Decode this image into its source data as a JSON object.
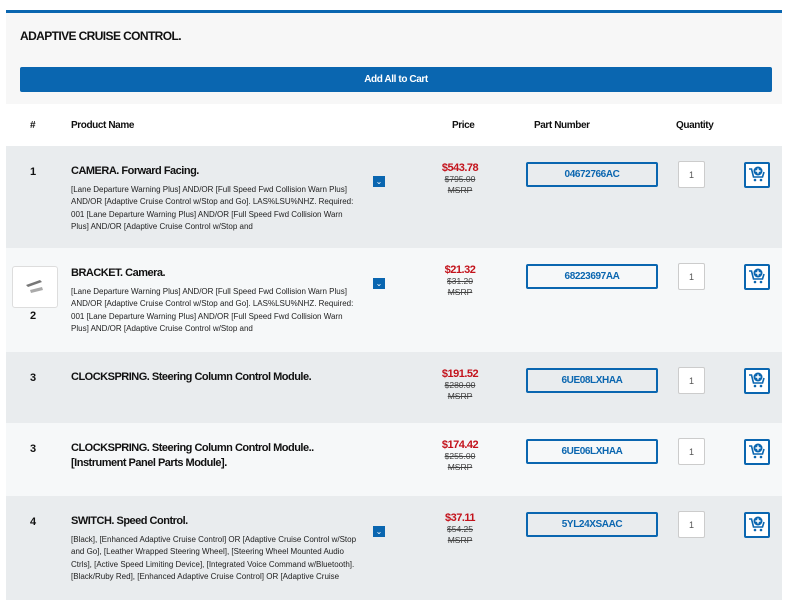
{
  "section": {
    "title": "ADAPTIVE CRUISE CONTROL.",
    "add_all_label": "Add All to Cart"
  },
  "columns": {
    "num": "#",
    "name": "Product Name",
    "price": "Price",
    "part": "Part Number",
    "qty": "Quantity"
  },
  "colors": {
    "accent": "#0a66b0",
    "sale": "#c3121b"
  },
  "rows": [
    {
      "num": "1",
      "name": "CAMERA. Forward Facing.",
      "desc": "[Lane Departure Warning Plus] AND/OR [Full Speed Fwd Collision Warn Plus] AND/OR [Adaptive Cruise Control w/Stop and Go]. LAS%LSU%NHZ. Required: 001 [Lane Departure Warning Plus] AND/OR [Full Speed Fwd Collision Warn Plus] AND/OR [Adaptive Cruise Control w/Stop and",
      "price": "$543.78",
      "msrp": "$795.00",
      "msrp_label": "MSRP",
      "part": "04672766AC",
      "qty": "1"
    },
    {
      "num": "2",
      "name": "BRACKET. Camera.",
      "desc": "[Lane Departure Warning Plus] AND/OR [Full Speed Fwd Collision Warn Plus] AND/OR [Adaptive Cruise Control w/Stop and Go]. LAS%LSU%NHZ. Required: 001 [Lane Departure Warning Plus] AND/OR [Full Speed Fwd Collision Warn Plus] AND/OR [Adaptive Cruise Control w/Stop and",
      "price": "$21.32",
      "msrp": "$31.20",
      "msrp_label": "MSRP",
      "part": "68223697AA",
      "qty": "1"
    },
    {
      "num": "3",
      "name": "CLOCKSPRING. Steering Column Control Module.",
      "price": "$191.52",
      "msrp": "$280.00",
      "msrp_label": "MSRP",
      "part": "6UE08LXHAA",
      "qty": "1"
    },
    {
      "num": "3",
      "name": "CLOCKSPRING. Steering Column Control Module.. [Instrument Panel Parts Module].",
      "price": "$174.42",
      "msrp": "$255.00",
      "msrp_label": "MSRP",
      "part": "6UE06LXHAA",
      "qty": "1"
    },
    {
      "num": "4",
      "name": "SWITCH. Speed Control.",
      "desc": "[Black], [Enhanced Adaptive Cruise Control] OR [Adaptive Cruise Control w/Stop and Go], [Leather Wrapped Steering Wheel], [Steering Wheel Mounted Audio Ctrls], [Active Speed Limiting Device], [Integrated Voice Command w/Bluetooth]. [Black/Ruby Red], [Enhanced Adaptive Cruise Control] OR [Adaptive Cruise",
      "price": "$37.11",
      "msrp": "$54.25",
      "msrp_label": "MSRP",
      "part": "5YL24XSAAC",
      "qty": "1"
    }
  ]
}
